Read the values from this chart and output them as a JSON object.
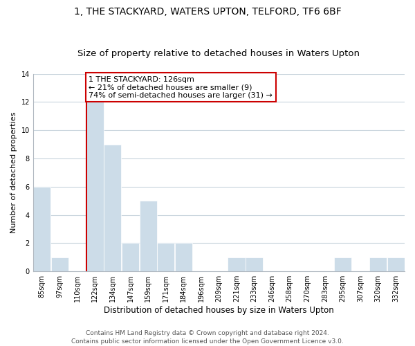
{
  "title": "1, THE STACKYARD, WATERS UPTON, TELFORD, TF6 6BF",
  "subtitle": "Size of property relative to detached houses in Waters Upton",
  "xlabel": "Distribution of detached houses by size in Waters Upton",
  "ylabel": "Number of detached properties",
  "bin_labels": [
    "85sqm",
    "97sqm",
    "110sqm",
    "122sqm",
    "134sqm",
    "147sqm",
    "159sqm",
    "171sqm",
    "184sqm",
    "196sqm",
    "209sqm",
    "221sqm",
    "233sqm",
    "246sqm",
    "258sqm",
    "270sqm",
    "283sqm",
    "295sqm",
    "307sqm",
    "320sqm",
    "332sqm"
  ],
  "bar_heights": [
    6,
    1,
    0,
    12,
    9,
    2,
    5,
    2,
    2,
    0,
    0,
    1,
    1,
    0,
    0,
    0,
    0,
    1,
    0,
    1,
    1
  ],
  "bar_color": "#ccdce8",
  "bar_edgecolor": "#ffffff",
  "ylim": [
    0,
    14
  ],
  "yticks": [
    0,
    2,
    4,
    6,
    8,
    10,
    12,
    14
  ],
  "property_bin_idx": 3,
  "property_line_color": "#cc0000",
  "annotation_line1": "1 THE STACKYARD: 126sqm",
  "annotation_line2": "← 21% of detached houses are smaller (9)",
  "annotation_line3": "74% of semi-detached houses are larger (31) →",
  "annotation_box_edgecolor": "#cc0000",
  "annotation_box_facecolor": "#ffffff",
  "footer_text": "Contains HM Land Registry data © Crown copyright and database right 2024.\nContains public sector information licensed under the Open Government Licence v3.0.",
  "background_color": "#ffffff",
  "grid_color": "#c8d4dc",
  "title_fontsize": 10,
  "subtitle_fontsize": 9.5,
  "xlabel_fontsize": 8.5,
  "ylabel_fontsize": 8,
  "tick_fontsize": 7,
  "annotation_fontsize": 8,
  "footer_fontsize": 6.5
}
